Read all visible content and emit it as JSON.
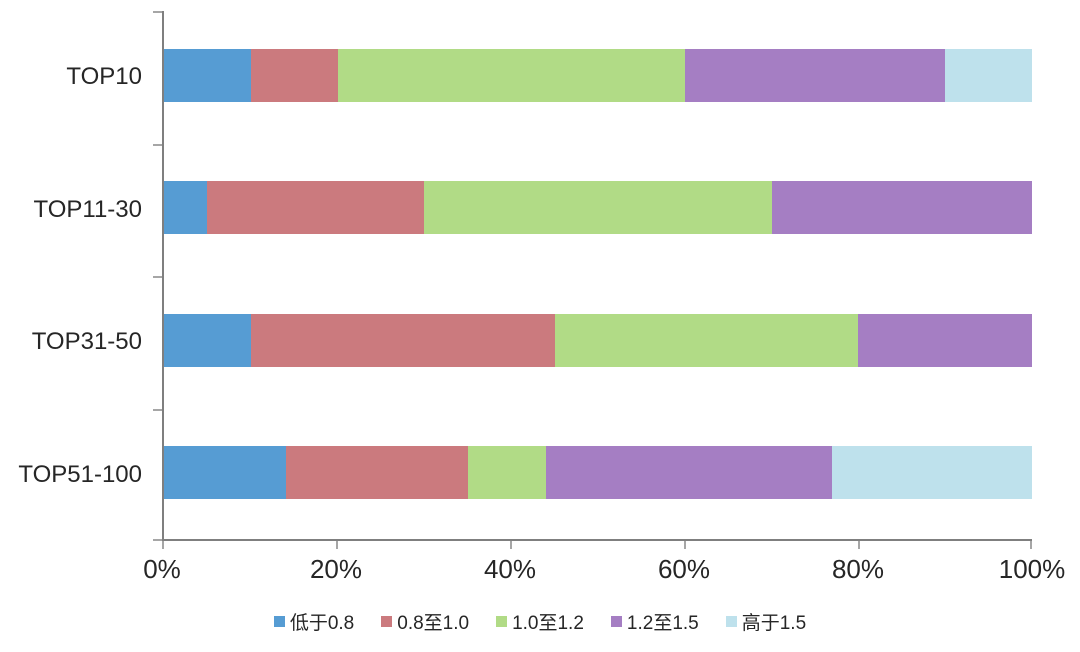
{
  "chart_data": {
    "type": "bar",
    "orientation": "horizontal",
    "stacked": true,
    "title": "",
    "xlabel": "",
    "ylabel": "",
    "categories": [
      "TOP10",
      "TOP11-30",
      "TOP31-50",
      "TOP51-100"
    ],
    "series": [
      {
        "name": "低于0.8",
        "color": "#569CD3",
        "values": [
          10,
          5,
          10,
          14
        ]
      },
      {
        "name": "0.8至1.0",
        "color": "#CB7A7E",
        "values": [
          10,
          25,
          35,
          21
        ]
      },
      {
        "name": "1.0至1.2",
        "color": "#B1DB86",
        "values": [
          40,
          40,
          35,
          9
        ]
      },
      {
        "name": "1.2至1.5",
        "color": "#A57EC3",
        "values": [
          30,
          30,
          20,
          33
        ]
      },
      {
        "name": "高于1.5",
        "color": "#BEE1EC",
        "values": [
          10,
          0,
          0,
          23
        ]
      }
    ],
    "x_axis": {
      "min": 0,
      "max": 100,
      "tick_labels": [
        "0%",
        "20%",
        "40%",
        "60%",
        "80%",
        "100%"
      ],
      "tick_values": [
        0,
        20,
        40,
        60,
        80,
        100
      ]
    },
    "legend_position": "bottom",
    "grid": false,
    "colors": {
      "axis_line": "#7f7f7f",
      "tick_mark": "#a6a6a6",
      "text": "#262626",
      "background": "#ffffff"
    }
  }
}
